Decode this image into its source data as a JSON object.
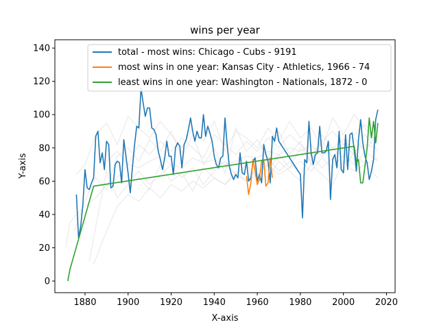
{
  "chart_data": {
    "type": "line",
    "title": "wins per year",
    "xlabel": "X-axis",
    "ylabel": "Y-axis",
    "xlim": [
      1866,
      2024
    ],
    "ylim": [
      -7,
      145
    ],
    "xticks": [
      1880,
      1900,
      1920,
      1940,
      1960,
      1980,
      2000,
      2020
    ],
    "yticks": [
      0,
      20,
      40,
      60,
      80,
      100,
      120,
      140
    ],
    "grid": false,
    "legend_position": "top-right",
    "background_series": {
      "color": "#d9d9d9",
      "note_count": 8,
      "series": [
        {
          "x": [
            1871,
            1873,
            1876,
            1880,
            1885,
            1890,
            1895,
            1900,
            1905,
            1910,
            1915,
            1920,
            1925,
            1930,
            1935,
            1940,
            1945,
            1950,
            1955,
            1960,
            1965,
            1970,
            1975,
            1980,
            1985,
            1990,
            1995,
            2000,
            2005,
            2010,
            2015
          ],
          "y": [
            20,
            35,
            40,
            45,
            50,
            58,
            62,
            70,
            68,
            72,
            75,
            70,
            68,
            74,
            71,
            73,
            70,
            72,
            75,
            74,
            78,
            76,
            80,
            78,
            82,
            75,
            80,
            85,
            78,
            82,
            80
          ]
        },
        {
          "x": [
            1875,
            1880,
            1885,
            1890,
            1895,
            1900,
            1905,
            1910,
            1915,
            1920,
            1925,
            1930,
            1935,
            1940,
            1945,
            1950,
            1955,
            1960,
            1965,
            1970,
            1975,
            1980,
            1985,
            1990,
            1995,
            2000,
            2005,
            2010,
            2016
          ],
          "y": [
            30,
            48,
            62,
            55,
            75,
            80,
            72,
            85,
            78,
            90,
            74,
            88,
            70,
            80,
            65,
            92,
            78,
            85,
            74,
            90,
            76,
            84,
            70,
            88,
            80,
            74,
            86,
            78,
            90
          ]
        },
        {
          "x": [
            1882,
            1886,
            1890,
            1895,
            1900,
            1905,
            1910,
            1915,
            1920,
            1925,
            1930,
            1935,
            1940,
            1945,
            1950,
            1955,
            1960,
            1965,
            1970,
            1975,
            1980,
            1985,
            1990,
            1995,
            2000,
            2005,
            2010,
            2016
          ],
          "y": [
            12,
            40,
            66,
            50,
            58,
            62,
            55,
            70,
            60,
            65,
            54,
            68,
            62,
            58,
            64,
            60,
            68,
            62,
            72,
            66,
            60,
            70,
            64,
            58,
            72,
            66,
            70,
            62
          ]
        },
        {
          "x": [
            1876,
            1880,
            1885,
            1890,
            1895,
            1900,
            1905,
            1910,
            1915,
            1920,
            1925,
            1930,
            1935,
            1940,
            1945,
            1950,
            1955,
            1960,
            1965,
            1970,
            1975,
            1980,
            1985,
            1990,
            1995,
            2000,
            2005,
            2010,
            2016
          ],
          "y": [
            64,
            70,
            88,
            95,
            82,
            99,
            92,
            86,
            96,
            88,
            80,
            92,
            84,
            96,
            78,
            90,
            86,
            80,
            92,
            84,
            96,
            86,
            92,
            80,
            98,
            88,
            100,
            92,
            84
          ]
        },
        {
          "x": [
            1884,
            1890,
            1895,
            1900,
            1905,
            1910,
            1915,
            1920,
            1925,
            1930,
            1935,
            1940,
            1945,
            1950,
            1955,
            1960,
            1965,
            1970,
            1975,
            1980,
            1985,
            1990,
            1995,
            2000,
            2005,
            2010,
            2016
          ],
          "y": [
            10,
            30,
            45,
            52,
            48,
            56,
            50,
            58,
            54,
            60,
            56,
            62,
            58,
            66,
            60,
            64,
            70,
            64,
            68,
            72,
            66,
            74,
            68,
            76,
            70,
            78,
            72
          ]
        },
        {
          "x": [
            1890,
            1895,
            1900,
            1905,
            1910,
            1915,
            1920,
            1925,
            1930,
            1935,
            1940,
            1945,
            1950,
            1955,
            1960,
            1965,
            1970,
            1975,
            1980,
            1985,
            1990,
            1995,
            2000,
            2005,
            2010,
            2016
          ],
          "y": [
            72,
            78,
            70,
            82,
            76,
            84,
            78,
            86,
            80,
            74,
            88,
            82,
            76,
            84,
            78,
            86,
            80,
            88,
            82,
            76,
            84,
            90,
            82,
            88,
            94,
            86
          ]
        },
        {
          "x": [
            1900,
            1905,
            1910,
            1915,
            1920,
            1925,
            1930,
            1935,
            1940,
            1945,
            1950,
            1955,
            1960,
            1965,
            1970,
            1975,
            1980,
            1985,
            1990,
            1995,
            2000,
            2005,
            2010,
            2016
          ],
          "y": [
            60,
            66,
            58,
            64,
            70,
            62,
            68,
            58,
            66,
            72,
            64,
            70,
            62,
            74,
            66,
            72,
            64,
            76,
            68,
            74,
            66,
            78,
            70,
            74
          ]
        },
        {
          "x": [
            1961,
            1965,
            1970,
            1975,
            1980,
            1985,
            1990,
            1995,
            2000,
            2005,
            2010,
            2016
          ],
          "y": [
            70,
            66,
            76,
            68,
            80,
            72,
            84,
            74,
            82,
            76,
            88,
            78
          ]
        }
      ]
    },
    "series": [
      {
        "name": "total - most wins: Chicago - Cubs - 9191",
        "color": "#1f77b4",
        "x": [
          1876,
          1877,
          1878,
          1879,
          1880,
          1881,
          1882,
          1883,
          1884,
          1885,
          1886,
          1887,
          1888,
          1889,
          1890,
          1891,
          1892,
          1893,
          1894,
          1895,
          1896,
          1897,
          1898,
          1899,
          1900,
          1901,
          1902,
          1903,
          1904,
          1905,
          1906,
          1907,
          1908,
          1909,
          1910,
          1911,
          1912,
          1913,
          1914,
          1915,
          1916,
          1917,
          1918,
          1919,
          1920,
          1921,
          1922,
          1923,
          1924,
          1925,
          1926,
          1927,
          1928,
          1929,
          1930,
          1931,
          1932,
          1933,
          1934,
          1935,
          1936,
          1937,
          1938,
          1939,
          1940,
          1941,
          1942,
          1943,
          1944,
          1945,
          1946,
          1947,
          1948,
          1949,
          1950,
          1951,
          1952,
          1953,
          1954,
          1955,
          1956,
          1957,
          1958,
          1959,
          1960,
          1961,
          1962,
          1963,
          1964,
          1965,
          1966,
          1967,
          1968,
          1969,
          1970,
          1980,
          1981,
          1982,
          1983,
          1984,
          1985,
          1986,
          1987,
          1988,
          1989,
          1990,
          1991,
          1992,
          1993,
          1994,
          1995,
          1996,
          1997,
          1998,
          1999,
          2000,
          2001,
          2002,
          2003,
          2004,
          2005,
          2006,
          2007,
          2008,
          2009,
          2010,
          2011,
          2012,
          2013,
          2014,
          2015,
          2016
        ],
        "y": [
          52,
          26,
          33,
          46,
          67,
          56,
          55,
          59,
          62,
          87,
          90,
          71,
          77,
          67,
          84,
          82,
          56,
          57,
          70,
          72,
          71,
          59,
          85,
          75,
          65,
          53,
          68,
          82,
          93,
          92,
          116,
          107,
          99,
          104,
          104,
          92,
          91,
          88,
          78,
          73,
          67,
          74,
          84,
          75,
          75,
          64,
          80,
          83,
          81,
          68,
          82,
          85,
          91,
          98,
          90,
          84,
          90,
          86,
          86,
          100,
          87,
          93,
          89,
          84,
          75,
          70,
          68,
          74,
          75,
          98,
          82,
          69,
          64,
          61,
          64,
          62,
          77,
          65,
          64,
          72,
          60,
          62,
          72,
          74,
          60,
          64,
          59,
          82,
          76,
          72,
          59,
          87,
          84,
          92,
          84,
          64,
          38,
          73,
          71,
          96,
          77,
          70,
          76,
          77,
          93,
          77,
          77,
          78,
          84,
          49,
          73,
          76,
          68,
          90,
          67,
          65,
          88,
          67,
          88,
          89,
          79,
          66,
          85,
          97,
          83,
          75,
          71,
          61,
          66,
          73,
          97,
          103
        ]
      },
      {
        "name": "most wins in one year: Kansas City - Athletics, 1966 - 74",
        "color": "#ff7f0e",
        "x": [
          1955,
          1956,
          1957,
          1958,
          1959,
          1960,
          1961,
          1962,
          1963,
          1964,
          1965,
          1966,
          1967
        ],
        "y": [
          63,
          52,
          59,
          73,
          66,
          58,
          61,
          72,
          73,
          57,
          59,
          74,
          62
        ]
      },
      {
        "name": "least wins in one year: Washington - Nationals, 1872 - 0",
        "color": "#2ca02c",
        "x": [
          1872,
          1873,
          1884,
          2005,
          2006,
          2007,
          2008,
          2009,
          2010,
          2011,
          2012,
          2013,
          2014,
          2015,
          2016
        ],
        "y": [
          0,
          7,
          57,
          81,
          71,
          73,
          59,
          59,
          69,
          80,
          98,
          86,
          96,
          83,
          95
        ]
      }
    ]
  }
}
